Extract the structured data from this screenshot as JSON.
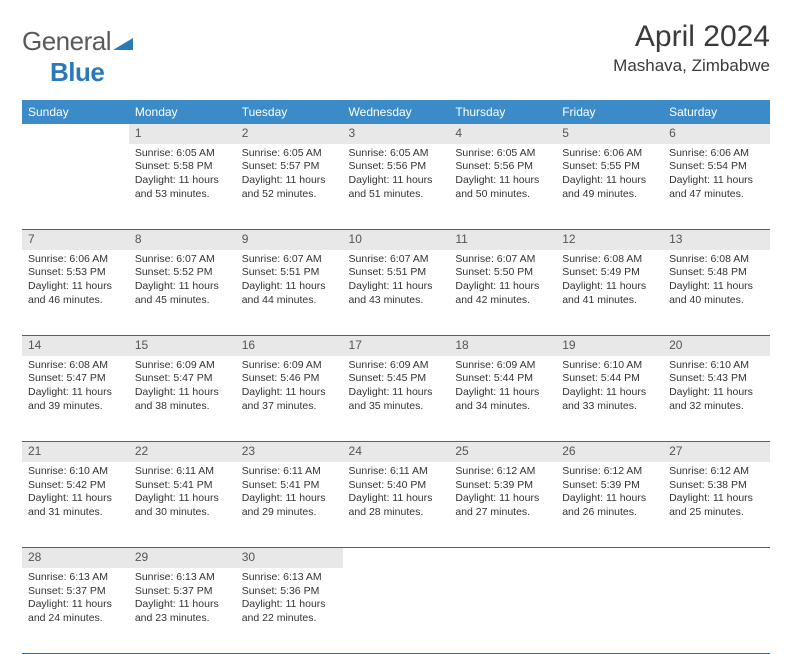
{
  "logo": {
    "part1": "General",
    "part2": "Blue"
  },
  "title": "April 2024",
  "location": "Mashava, Zimbabwe",
  "colors": {
    "header_bg": "#3b8bc9",
    "header_text": "#ffffff",
    "daynum_bg": "#e8e8e8",
    "border": "#2a6fa3",
    "logo_blue": "#2a7ab8"
  },
  "dayHeaders": [
    "Sunday",
    "Monday",
    "Tuesday",
    "Wednesday",
    "Thursday",
    "Friday",
    "Saturday"
  ],
  "weeks": [
    [
      null,
      {
        "n": "1",
        "sr": "6:05 AM",
        "ss": "5:58 PM",
        "dl": "11 hours and 53 minutes."
      },
      {
        "n": "2",
        "sr": "6:05 AM",
        "ss": "5:57 PM",
        "dl": "11 hours and 52 minutes."
      },
      {
        "n": "3",
        "sr": "6:05 AM",
        "ss": "5:56 PM",
        "dl": "11 hours and 51 minutes."
      },
      {
        "n": "4",
        "sr": "6:05 AM",
        "ss": "5:56 PM",
        "dl": "11 hours and 50 minutes."
      },
      {
        "n": "5",
        "sr": "6:06 AM",
        "ss": "5:55 PM",
        "dl": "11 hours and 49 minutes."
      },
      {
        "n": "6",
        "sr": "6:06 AM",
        "ss": "5:54 PM",
        "dl": "11 hours and 47 minutes."
      }
    ],
    [
      {
        "n": "7",
        "sr": "6:06 AM",
        "ss": "5:53 PM",
        "dl": "11 hours and 46 minutes."
      },
      {
        "n": "8",
        "sr": "6:07 AM",
        "ss": "5:52 PM",
        "dl": "11 hours and 45 minutes."
      },
      {
        "n": "9",
        "sr": "6:07 AM",
        "ss": "5:51 PM",
        "dl": "11 hours and 44 minutes."
      },
      {
        "n": "10",
        "sr": "6:07 AM",
        "ss": "5:51 PM",
        "dl": "11 hours and 43 minutes."
      },
      {
        "n": "11",
        "sr": "6:07 AM",
        "ss": "5:50 PM",
        "dl": "11 hours and 42 minutes."
      },
      {
        "n": "12",
        "sr": "6:08 AM",
        "ss": "5:49 PM",
        "dl": "11 hours and 41 minutes."
      },
      {
        "n": "13",
        "sr": "6:08 AM",
        "ss": "5:48 PM",
        "dl": "11 hours and 40 minutes."
      }
    ],
    [
      {
        "n": "14",
        "sr": "6:08 AM",
        "ss": "5:47 PM",
        "dl": "11 hours and 39 minutes."
      },
      {
        "n": "15",
        "sr": "6:09 AM",
        "ss": "5:47 PM",
        "dl": "11 hours and 38 minutes."
      },
      {
        "n": "16",
        "sr": "6:09 AM",
        "ss": "5:46 PM",
        "dl": "11 hours and 37 minutes."
      },
      {
        "n": "17",
        "sr": "6:09 AM",
        "ss": "5:45 PM",
        "dl": "11 hours and 35 minutes."
      },
      {
        "n": "18",
        "sr": "6:09 AM",
        "ss": "5:44 PM",
        "dl": "11 hours and 34 minutes."
      },
      {
        "n": "19",
        "sr": "6:10 AM",
        "ss": "5:44 PM",
        "dl": "11 hours and 33 minutes."
      },
      {
        "n": "20",
        "sr": "6:10 AM",
        "ss": "5:43 PM",
        "dl": "11 hours and 32 minutes."
      }
    ],
    [
      {
        "n": "21",
        "sr": "6:10 AM",
        "ss": "5:42 PM",
        "dl": "11 hours and 31 minutes."
      },
      {
        "n": "22",
        "sr": "6:11 AM",
        "ss": "5:41 PM",
        "dl": "11 hours and 30 minutes."
      },
      {
        "n": "23",
        "sr": "6:11 AM",
        "ss": "5:41 PM",
        "dl": "11 hours and 29 minutes."
      },
      {
        "n": "24",
        "sr": "6:11 AM",
        "ss": "5:40 PM",
        "dl": "11 hours and 28 minutes."
      },
      {
        "n": "25",
        "sr": "6:12 AM",
        "ss": "5:39 PM",
        "dl": "11 hours and 27 minutes."
      },
      {
        "n": "26",
        "sr": "6:12 AM",
        "ss": "5:39 PM",
        "dl": "11 hours and 26 minutes."
      },
      {
        "n": "27",
        "sr": "6:12 AM",
        "ss": "5:38 PM",
        "dl": "11 hours and 25 minutes."
      }
    ],
    [
      {
        "n": "28",
        "sr": "6:13 AM",
        "ss": "5:37 PM",
        "dl": "11 hours and 24 minutes."
      },
      {
        "n": "29",
        "sr": "6:13 AM",
        "ss": "5:37 PM",
        "dl": "11 hours and 23 minutes."
      },
      {
        "n": "30",
        "sr": "6:13 AM",
        "ss": "5:36 PM",
        "dl": "11 hours and 22 minutes."
      },
      null,
      null,
      null,
      null
    ]
  ],
  "labels": {
    "sunrise": "Sunrise:",
    "sunset": "Sunset:",
    "daylight": "Daylight:"
  }
}
